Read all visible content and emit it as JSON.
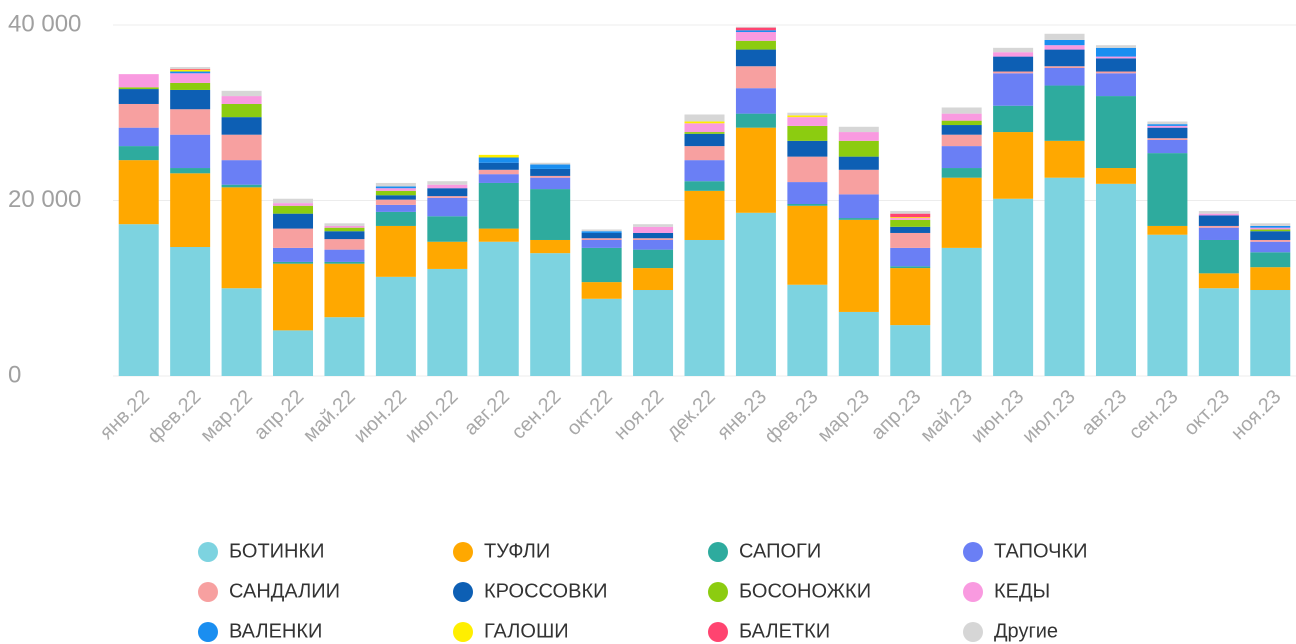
{
  "chart_data": {
    "type": "stacked_bar",
    "categories": [
      "янв.22",
      "фев.22",
      "мар.22",
      "апр.22",
      "май.22",
      "июн.22",
      "июл.22",
      "авг.22",
      "сен.22",
      "окт.22",
      "ноя.22",
      "дек.22",
      "янв.23",
      "фев.23",
      "мар.23",
      "апр.23",
      "май.23",
      "июн.23",
      "июл.23",
      "авг.23",
      "сен.23",
      "окт.23",
      "ноя.23"
    ],
    "ylim": [
      0,
      40000
    ],
    "yticks": [
      0,
      {
        "value": 20000,
        "label": "20 000"
      },
      {
        "value": 40000,
        "label": "40 000"
      }
    ],
    "grid": true,
    "legend": "bottom",
    "series": [
      {
        "name": "БОТИНКИ",
        "color": "#7dd3e0",
        "values": [
          17300,
          14700,
          10000,
          5200,
          6700,
          11300,
          12200,
          15300,
          14000,
          8800,
          9800,
          15500,
          18600,
          10400,
          7300,
          5800,
          14600,
          20200,
          22600,
          21900,
          16100,
          10000,
          9800
        ]
      },
      {
        "name": "ТУФЛИ",
        "color": "#ffa800",
        "values": [
          7300,
          8400,
          11500,
          7600,
          6100,
          5800,
          3100,
          1500,
          1500,
          1900,
          2500,
          5600,
          9700,
          9000,
          10500,
          6500,
          8000,
          7600,
          4200,
          1800,
          1000,
          1700,
          2600
        ]
      },
      {
        "name": "САПОГИ",
        "color": "#2eab9e",
        "values": [
          1600,
          600,
          300,
          200,
          200,
          1600,
          2900,
          5200,
          5800,
          3900,
          2100,
          1100,
          1600,
          200,
          200,
          200,
          1100,
          3000,
          6300,
          8200,
          8300,
          3800,
          1700
        ]
      },
      {
        "name": "ТАПОЧКИ",
        "color": "#6a7ff5",
        "values": [
          2100,
          3800,
          2800,
          1600,
          1400,
          800,
          2100,
          1000,
          1300,
          900,
          1100,
          2400,
          2900,
          2500,
          2700,
          2100,
          2500,
          3700,
          2000,
          2600,
          1500,
          1400,
          1200
        ]
      },
      {
        "name": "САНДАЛИИ",
        "color": "#f7a0a0",
        "values": [
          2700,
          2900,
          2900,
          2200,
          1200,
          600,
          200,
          500,
          200,
          200,
          200,
          1600,
          2500,
          2900,
          2800,
          1700,
          1300,
          200,
          200,
          200,
          200,
          200,
          200
        ]
      },
      {
        "name": "КРОССОВКИ",
        "color": "#0d5fb4",
        "values": [
          1700,
          2200,
          2000,
          1700,
          900,
          500,
          900,
          800,
          800,
          600,
          600,
          1400,
          1900,
          1800,
          1500,
          700,
          1100,
          1700,
          1900,
          1500,
          1200,
          1200,
          1000
        ]
      },
      {
        "name": "БОСОНОЖКИ",
        "color": "#8ccc10",
        "values": [
          200,
          800,
          1500,
          900,
          400,
          500,
          0,
          0,
          0,
          0,
          0,
          200,
          1000,
          1700,
          1800,
          800,
          500,
          0,
          0,
          0,
          0,
          0,
          200
        ]
      },
      {
        "name": "КЕДЫ",
        "color": "#f99ae0",
        "values": [
          1500,
          1100,
          900,
          300,
          200,
          300,
          400,
          0,
          0,
          0,
          700,
          1000,
          1000,
          1000,
          1000,
          200,
          800,
          500,
          500,
          200,
          200,
          200,
          200
        ]
      },
      {
        "name": "ВАЛЕНКИ",
        "color": "#1a8ef0",
        "values": [
          0,
          200,
          0,
          0,
          0,
          200,
          0,
          600,
          500,
          200,
          0,
          0,
          200,
          0,
          0,
          0,
          0,
          0,
          600,
          1000,
          200,
          0,
          200
        ]
      },
      {
        "name": "ГАЛОШИ",
        "color": "#ffef00",
        "values": [
          0,
          200,
          0,
          0,
          0,
          0,
          0,
          300,
          0,
          0,
          0,
          200,
          0,
          200,
          0,
          100,
          0,
          0,
          0,
          0,
          0,
          0,
          0
        ]
      },
      {
        "name": "БАЛЕТКИ",
        "color": "#ff4470",
        "values": [
          0,
          100,
          0,
          0,
          0,
          0,
          0,
          0,
          0,
          0,
          0,
          0,
          300,
          0,
          0,
          400,
          0,
          0,
          0,
          0,
          0,
          0,
          0
        ]
      },
      {
        "name": "Другие",
        "color": "#d6d6d6",
        "values": [
          0,
          200,
          600,
          500,
          300,
          400,
          400,
          0,
          200,
          200,
          300,
          800,
          100,
          300,
          600,
          300,
          700,
          500,
          700,
          300,
          300,
          300,
          300
        ]
      }
    ]
  }
}
